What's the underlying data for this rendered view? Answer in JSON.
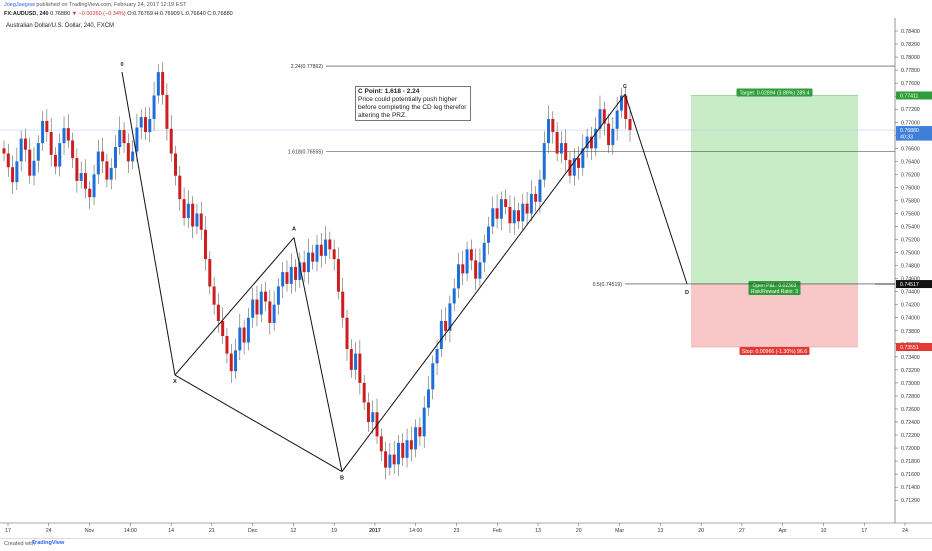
{
  "header": {
    "user": "JoegJaegow",
    "published": "published on TradingView.com, February 24, 2017 12:19 EST",
    "symbol": "FX:AUDUSD, 240",
    "last": "0.76880",
    "change": "▼ −0.00260 (−0.34%)",
    "ohlc": "O:0.76769 H:0.76909 L:0.76640 C:0.76880"
  },
  "footer": {
    "created": "Created with",
    "logo": "TradingView"
  },
  "note": {
    "title": "C Point: 1.618 - 2.24",
    "body": "Price could potentially push higher before completing the CD leg therefor altering the PRZ."
  },
  "chart_data": {
    "type": "line",
    "title": "Australian Dollar/U.S. Dollar, 240, FXCM",
    "price_axis": {
      "min": 0.7085,
      "max": 0.786,
      "ticks": [
        "0.78400",
        "0.78200",
        "0.78000",
        "0.77800",
        "0.77600",
        "0.77400",
        "0.77200",
        "0.77000",
        "0.76800",
        "0.76600",
        "0.76400",
        "0.76200",
        "0.76000",
        "0.75800",
        "0.75600",
        "0.75400",
        "0.75200",
        "0.75000",
        "0.74800",
        "0.74600",
        "0.74400",
        "0.74200",
        "0.74000",
        "0.73800",
        "0.73600",
        "0.73400",
        "0.73200",
        "0.73000",
        "0.72800",
        "0.72600",
        "0.72400",
        "0.72200",
        "0.72000",
        "0.71800",
        "0.71600",
        "0.71400",
        "0.71200"
      ]
    },
    "time_axis_labels": [
      "17",
      "24",
      "Nov",
      "14:00",
      "14",
      "21",
      "Dec",
      "12",
      "19",
      "2017",
      "14:00",
      "23",
      "Feb",
      "13",
      "20",
      "Mar",
      "13",
      "20",
      "27",
      "Apr",
      "10",
      "17",
      "24"
    ],
    "pattern_points": [
      {
        "label": "0",
        "price": 0.7777
      },
      {
        "label": "X",
        "price": 0.7312
      },
      {
        "label": "A",
        "price": 0.7523
      },
      {
        "label": "B",
        "price": 0.7164
      },
      {
        "label": "C",
        "price": 0.7743
      },
      {
        "label": "D",
        "price": 0.7452
      }
    ],
    "fib_levels": [
      {
        "label": "2.24(0.77862)",
        "price": 0.77862
      },
      {
        "label": "1.618(0.76555)",
        "price": 0.76555
      },
      {
        "label": "0.5(0.74519)",
        "price": 0.74519
      }
    ],
    "position": {
      "target_label": "Target: 0.02894 (3.88%) 289.4",
      "stop_label": "Stop: 0.00966 (-1.30%) 96.6",
      "open_pl_label": "Open P&L: 0.02363",
      "rr_label": "Risk/Reward Ratio: 3",
      "target_price": 0.77411,
      "entry_price": 0.74517,
      "stop_price": 0.73551
    },
    "price_tags": [
      {
        "text": "0.77411",
        "price": 0.77411,
        "color": "#2e9d3a"
      },
      {
        "text": "0.76880",
        "price": 0.7688,
        "color": "#3f7fd9"
      },
      {
        "text": "40:33",
        "price": 0.7678,
        "color": "#3f7fd9"
      },
      {
        "text": "0.74517",
        "price": 0.74517,
        "color": "#111111"
      },
      {
        "text": "0.73551",
        "price": 0.73551,
        "color": "#e53935"
      }
    ],
    "candles_close": [
      0.7652,
      0.7631,
      0.7608,
      0.764,
      0.7675,
      0.7658,
      0.7618,
      0.7641,
      0.7668,
      0.7702,
      0.7685,
      0.765,
      0.7632,
      0.7668,
      0.7691,
      0.7672,
      0.7645,
      0.761,
      0.7622,
      0.7598,
      0.7585,
      0.762,
      0.7655,
      0.764,
      0.7612,
      0.763,
      0.7662,
      0.7688,
      0.7668,
      0.764,
      0.7655,
      0.7692,
      0.7708,
      0.7685,
      0.7705,
      0.7741,
      0.7777,
      0.7742,
      0.769,
      0.7652,
      0.7618,
      0.7582,
      0.7553,
      0.7575,
      0.754,
      0.756,
      0.7535,
      0.749,
      0.7448,
      0.742,
      0.7395,
      0.7372,
      0.7345,
      0.7318,
      0.735,
      0.7385,
      0.7362,
      0.74,
      0.7428,
      0.7405,
      0.744,
      0.7425,
      0.7392,
      0.742,
      0.7448,
      0.747,
      0.7452,
      0.7478,
      0.7458,
      0.7485,
      0.747,
      0.75,
      0.7486,
      0.7512,
      0.7495,
      0.752,
      0.7505,
      0.749,
      0.744,
      0.74,
      0.7352,
      0.732,
      0.7345,
      0.73,
      0.727,
      0.724,
      0.7255,
      0.7218,
      0.7195,
      0.717,
      0.719,
      0.7175,
      0.7208,
      0.7185,
      0.7212,
      0.7198,
      0.7232,
      0.7218,
      0.7262,
      0.729,
      0.733,
      0.7352,
      0.7395,
      0.738,
      0.7422,
      0.7445,
      0.7482,
      0.7468,
      0.7505,
      0.7488,
      0.746,
      0.7485,
      0.7515,
      0.754,
      0.7568,
      0.7552,
      0.7582,
      0.757,
      0.7545,
      0.7565,
      0.7548,
      0.7575,
      0.756,
      0.759,
      0.7578,
      0.7612,
      0.7668,
      0.7705,
      0.7685,
      0.7652,
      0.7668,
      0.7642,
      0.7618,
      0.7645,
      0.763,
      0.766,
      0.7678,
      0.766,
      0.769,
      0.772,
      0.7698,
      0.7665,
      0.769,
      0.7718,
      0.7741,
      0.7705,
      0.7688
    ]
  }
}
